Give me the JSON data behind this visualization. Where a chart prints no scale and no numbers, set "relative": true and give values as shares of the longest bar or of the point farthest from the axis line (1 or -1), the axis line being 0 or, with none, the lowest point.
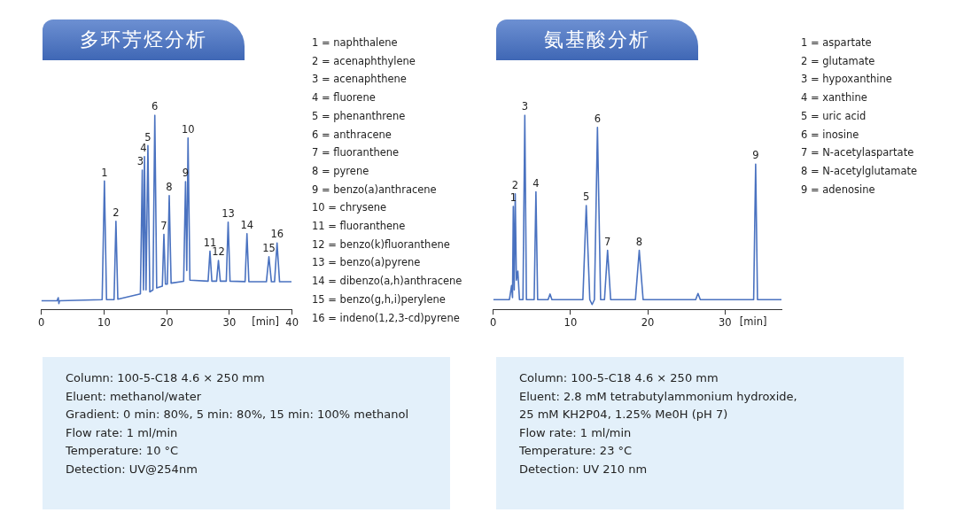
{
  "chart_data": [
    {
      "type": "line",
      "title": "多环芳烃分析",
      "relative": true,
      "marker": "none",
      "color": "#4a72c0",
      "xlabel": "[min]",
      "xlim": [
        0,
        40
      ],
      "xticks": [
        0,
        10,
        20,
        30,
        40
      ],
      "x": [
        0,
        2.5,
        2.7,
        2.8,
        2.9,
        9.7,
        10.06,
        10.4,
        11.6,
        11.9,
        12.2,
        15.8,
        16.1,
        16.3,
        16.45,
        16.7,
        17.0,
        17.3,
        17.8,
        18.1,
        18.4,
        19.3,
        19.55,
        19.8,
        20.1,
        20.4,
        20.7,
        22.7,
        23.0,
        23.2,
        23.4,
        23.7,
        26.6,
        26.9,
        27.2,
        27.95,
        28.25,
        28.55,
        29.5,
        29.8,
        30.1,
        32.5,
        32.8,
        33.1,
        35.9,
        36.3,
        36.7,
        37.2,
        37.6,
        38.0,
        39.9
      ],
      "values": [
        0.044,
        0.044,
        0.06,
        0.03,
        0.044,
        0.05,
        0.661,
        0.05,
        0.05,
        0.454,
        0.052,
        0.08,
        0.717,
        0.1,
        0.787,
        0.1,
        0.843,
        0.09,
        0.1,
        1,
        0.11,
        0.12,
        0.386,
        0.13,
        0.13,
        0.586,
        0.135,
        0.145,
        0.658,
        0.2,
        0.882,
        0.15,
        0.145,
        0.299,
        0.145,
        0.145,
        0.252,
        0.145,
        0.145,
        0.449,
        0.145,
        0.143,
        0.39,
        0.143,
        0.142,
        0.271,
        0.142,
        0.142,
        0.342,
        0.142,
        0.142
      ],
      "annotations": [
        {
          "text": "1",
          "x": 10.06,
          "y": 0.661
        },
        {
          "text": "2",
          "x": 11.9,
          "y": 0.454
        },
        {
          "text": "3",
          "x": 15.8,
          "y": 0.717
        },
        {
          "text": "4",
          "x": 16.3,
          "y": 0.787
        },
        {
          "text": "5",
          "x": 17.0,
          "y": 0.843
        },
        {
          "text": "6",
          "x": 18.1,
          "y": 1
        },
        {
          "text": "7",
          "x": 19.55,
          "y": 0.386
        },
        {
          "text": "8",
          "x": 20.4,
          "y": 0.586
        },
        {
          "text": "9",
          "x": 23.0,
          "y": 0.658
        },
        {
          "text": "10",
          "x": 23.4,
          "y": 0.882
        },
        {
          "text": "11",
          "x": 26.9,
          "y": 0.299
        },
        {
          "text": "12",
          "x": 28.25,
          "y": 0.252
        },
        {
          "text": "13",
          "x": 29.8,
          "y": 0.449
        },
        {
          "text": "14",
          "x": 32.8,
          "y": 0.39
        },
        {
          "text": "15",
          "x": 36.3,
          "y": 0.271
        },
        {
          "text": "16",
          "x": 37.6,
          "y": 0.342
        },
        "1 = naphthalene",
        "2 = acenaphthylene",
        "3 = acenaphthene",
        "4 = fluorene",
        "5 = phenanthrene",
        "6 = anthracene",
        "7 = fluoranthene",
        "8 = pyrene",
        "9 = benzo(a)anthracene",
        "10 = chrysene",
        "11 = fluoranthene",
        "12 = benzo(k)fluoranthene",
        "13 = benzo(a)pyrene",
        "14 = dibenzo(a,h)anthracene",
        "15 = benzo(g,h,i)perylene",
        "16 = indeno(1,2,3-cd)pyrene",
        "Column: 100-5-C18 4.6 × 250 mm",
        "Eluent: methanol/water",
        "Gradient: 0 min: 80%, 5 min: 80%, 15 min: 100% methanol",
        "Flow rate: 1 ml/min",
        "Temperature: 10 °C",
        "Detection: UV@254nm"
      ]
    },
    {
      "type": "line",
      "title": "氨基酸分析",
      "relative": true,
      "marker": "none",
      "color": "#4a72c0",
      "xlabel": "[min]",
      "xlim": [
        0,
        37.3
      ],
      "xticks": [
        0,
        10,
        20,
        30
      ],
      "x": [
        0,
        2.1,
        2.38,
        2.5,
        2.6,
        2.72,
        2.85,
        3.0,
        3.19,
        3.4,
        3.85,
        4.09,
        4.3,
        5.3,
        5.53,
        5.75,
        7.1,
        7.36,
        7.6,
        11.6,
        12.04,
        12.5,
        12.8,
        13.1,
        13.49,
        13.9,
        14.4,
        14.8,
        15.2,
        18.4,
        18.9,
        19.4,
        26.2,
        26.5,
        26.8,
        33.7,
        33.96,
        34.2,
        37.3
      ],
      "values": [
        0.05,
        0.05,
        0.123,
        0.06,
        0.53,
        0.1,
        0.595,
        0.15,
        0.197,
        0.05,
        0.05,
        1,
        0.05,
        0.05,
        0.605,
        0.05,
        0.05,
        0.079,
        0.05,
        0.05,
        0.535,
        0.05,
        0.025,
        0.05,
        0.9375,
        0.05,
        0.05,
        0.304,
        0.05,
        0.05,
        0.304,
        0.05,
        0.05,
        0.082,
        0.05,
        0.05,
        0.748,
        0.05,
        0.05
      ],
      "annotations": [
        {
          "text": "1",
          "x": 2.6,
          "y": 0.53
        },
        {
          "text": "2",
          "x": 2.85,
          "y": 0.595
        },
        {
          "text": "3",
          "x": 4.09,
          "y": 1
        },
        {
          "text": "4",
          "x": 5.53,
          "y": 0.605
        },
        {
          "text": "5",
          "x": 12.04,
          "y": 0.535
        },
        {
          "text": "6",
          "x": 13.49,
          "y": 0.9375
        },
        {
          "text": "7",
          "x": 14.8,
          "y": 0.304
        },
        {
          "text": "8",
          "x": 18.9,
          "y": 0.304
        },
        {
          "text": "9",
          "x": 33.96,
          "y": 0.748
        },
        "1 = aspartate",
        "2 = glutamate",
        "3 = hypoxanthine",
        "4 = xanthine",
        "5 = uric acid",
        "6 = inosine",
        "7 = N-acetylaspartate",
        "8 = N-acetylglutamate",
        "9 = adenosine",
        "Column: 100-5-C18 4.6 × 250 mm",
        "Eluent: 2.8 mM tetrabutylammonium hydroxide,",
        "25 mM KH2P04, 1.25% Me0H (pH 7)",
        "Flow rate: 1 ml/min",
        "Temperature: 23 °C",
        "Detection: UV  210 nm"
      ]
    }
  ]
}
